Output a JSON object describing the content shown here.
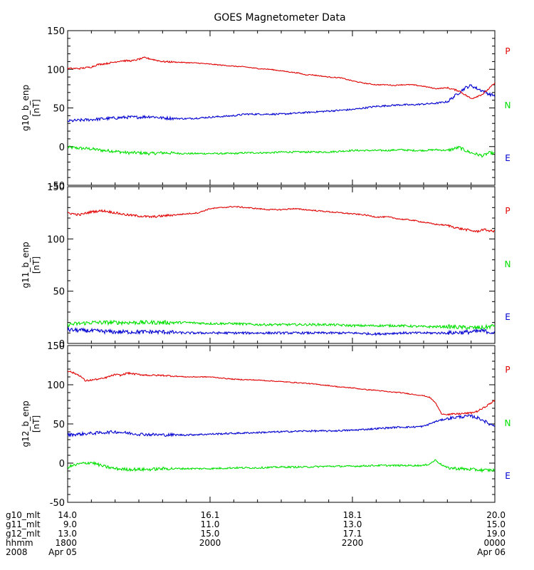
{
  "title": "GOES Magnetometer Data",
  "colors": {
    "P": "#e00000",
    "N": "#00e000",
    "E": "#0000d0",
    "axis": "#000000"
  },
  "chart_data": [
    {
      "type": "line",
      "ylabel": "g10_b_enp",
      "unit": "[nT]",
      "ylim": [
        -50,
        150
      ],
      "yticks": [
        -50,
        0,
        50,
        100,
        150
      ],
      "xlim": [
        0,
        360
      ],
      "legend": [
        "P",
        "N",
        "E"
      ],
      "series": [
        {
          "name": "P",
          "color": "#e00000",
          "x": [
            0,
            10,
            20,
            25,
            35,
            45,
            55,
            65,
            80,
            95,
            110,
            125,
            140,
            150,
            160,
            170,
            180,
            190,
            195,
            200,
            205,
            210,
            215,
            220,
            230,
            240,
            250,
            260,
            270,
            275,
            280,
            290,
            300,
            310,
            320,
            330,
            340,
            345,
            350,
            355,
            360
          ],
          "y": [
            101,
            101,
            103,
            106,
            108,
            111,
            111,
            115,
            110,
            109,
            108,
            106,
            104,
            103,
            101,
            100,
            98,
            96,
            95,
            93,
            93,
            92,
            91,
            90,
            89,
            85,
            82,
            80,
            80,
            79,
            80,
            80,
            78,
            75,
            76,
            72,
            62,
            65,
            68,
            75,
            82
          ]
        },
        {
          "name": "N",
          "color": "#00e000",
          "x": [
            0,
            10,
            20,
            30,
            40,
            50,
            60,
            70,
            80,
            100,
            120,
            140,
            150,
            160,
            170,
            180,
            190,
            200,
            210,
            220,
            230,
            240,
            250,
            260,
            270,
            280,
            290,
            300,
            310,
            320,
            330,
            335,
            340,
            345,
            350,
            355,
            360
          ],
          "y": [
            -1,
            -2,
            -3,
            -5,
            -6,
            -8,
            -8,
            -9,
            -8,
            -9,
            -9,
            -9,
            -8,
            -8,
            -8,
            -7,
            -7,
            -7,
            -7,
            -7,
            -6,
            -5,
            -5,
            -5,
            -5,
            -4,
            -5,
            -5,
            -4,
            -5,
            -1,
            -5,
            -8,
            -10,
            -12,
            -8,
            -9
          ]
        },
        {
          "name": "E",
          "color": "#0000d0",
          "x": [
            0,
            10,
            20,
            30,
            40,
            50,
            60,
            70,
            80,
            100,
            120,
            140,
            150,
            160,
            170,
            180,
            190,
            200,
            210,
            220,
            230,
            240,
            250,
            260,
            270,
            280,
            290,
            300,
            310,
            320,
            330,
            335,
            340,
            345,
            350,
            355,
            360
          ],
          "y": [
            33,
            34,
            35,
            36,
            37,
            38,
            38,
            39,
            37,
            36,
            38,
            40,
            42,
            42,
            42,
            42,
            43,
            44,
            45,
            46,
            47,
            48,
            50,
            52,
            53,
            54,
            54,
            55,
            56,
            58,
            70,
            76,
            79,
            75,
            72,
            68,
            66
          ]
        }
      ]
    },
    {
      "type": "line",
      "ylabel": "g11_b_enp",
      "unit": "[nT]",
      "ylim": [
        0,
        150
      ],
      "yticks": [
        0,
        50,
        100,
        150
      ],
      "xlim": [
        0,
        360
      ],
      "legend": [
        "P",
        "N",
        "E"
      ],
      "series": [
        {
          "name": "P",
          "color": "#e00000",
          "x": [
            0,
            10,
            20,
            30,
            40,
            50,
            60,
            70,
            80,
            90,
            100,
            110,
            120,
            130,
            140,
            150,
            160,
            170,
            180,
            190,
            200,
            210,
            220,
            230,
            240,
            250,
            260,
            270,
            280,
            290,
            300,
            310,
            320,
            330,
            340,
            345,
            350,
            355,
            360
          ],
          "y": [
            125,
            123,
            126,
            127,
            125,
            123,
            122,
            121,
            122,
            123,
            124,
            125,
            129,
            130,
            131,
            130,
            129,
            128,
            128,
            129,
            128,
            127,
            126,
            125,
            124,
            123,
            121,
            121,
            119,
            118,
            116,
            114,
            113,
            110,
            108,
            107,
            109,
            108,
            107
          ]
        },
        {
          "name": "N",
          "color": "#00e000",
          "x": [
            0,
            20,
            40,
            60,
            80,
            100,
            120,
            140,
            160,
            180,
            200,
            220,
            240,
            260,
            280,
            300,
            320,
            340,
            350,
            355,
            360
          ],
          "y": [
            18,
            20,
            20,
            20,
            20,
            20,
            19,
            19,
            18,
            18,
            18,
            18,
            17,
            17,
            17,
            16,
            16,
            15,
            15,
            16,
            17
          ]
        },
        {
          "name": "E",
          "color": "#0000d0",
          "x": [
            0,
            20,
            40,
            60,
            80,
            100,
            120,
            140,
            160,
            180,
            200,
            220,
            240,
            260,
            280,
            300,
            320,
            340,
            350,
            355,
            360
          ],
          "y": [
            13,
            12,
            11,
            11,
            11,
            10,
            10,
            10,
            10,
            10,
            10,
            10,
            10,
            9,
            10,
            10,
            10,
            11,
            12,
            11,
            10
          ]
        }
      ]
    },
    {
      "type": "line",
      "ylabel": "g12_b_enp",
      "unit": "[nT]",
      "ylim": [
        -50,
        150
      ],
      "yticks": [
        -50,
        0,
        50,
        100,
        150
      ],
      "xlim": [
        0,
        360
      ],
      "legend": [
        "P",
        "N",
        "E"
      ],
      "series": [
        {
          "name": "P",
          "color": "#e00000",
          "x": [
            0,
            10,
            15,
            20,
            30,
            40,
            45,
            50,
            60,
            70,
            80,
            100,
            120,
            140,
            160,
            180,
            200,
            220,
            230,
            240,
            250,
            260,
            270,
            280,
            290,
            300,
            305,
            310,
            315,
            320,
            330,
            340,
            345,
            350,
            355,
            360
          ],
          "y": [
            118,
            112,
            105,
            106,
            108,
            113,
            112,
            115,
            113,
            112,
            112,
            110,
            110,
            107,
            106,
            104,
            102,
            99,
            97,
            96,
            94,
            93,
            91,
            90,
            88,
            86,
            84,
            77,
            63,
            62,
            63,
            64,
            66,
            70,
            75,
            80
          ]
        },
        {
          "name": "N",
          "color": "#00e000",
          "x": [
            0,
            10,
            20,
            30,
            40,
            50,
            60,
            70,
            80,
            100,
            120,
            140,
            160,
            180,
            200,
            220,
            240,
            260,
            280,
            290,
            300,
            305,
            310,
            315,
            320,
            330,
            340,
            350,
            360
          ],
          "y": [
            -5,
            -1,
            1,
            -4,
            -7,
            -8,
            -8,
            -8,
            -7,
            -7,
            -7,
            -6,
            -6,
            -5,
            -5,
            -4,
            -4,
            -3,
            -3,
            -3,
            -3,
            -1,
            4,
            -2,
            -6,
            -7,
            -8,
            -9,
            -9
          ]
        },
        {
          "name": "E",
          "color": "#0000d0",
          "x": [
            0,
            20,
            40,
            60,
            80,
            100,
            120,
            140,
            160,
            180,
            200,
            220,
            240,
            260,
            280,
            290,
            300,
            310,
            320,
            330,
            340,
            345,
            350,
            355,
            360
          ],
          "y": [
            36,
            38,
            40,
            37,
            36,
            36,
            37,
            38,
            39,
            40,
            41,
            41,
            42,
            44,
            46,
            46,
            47,
            53,
            57,
            59,
            60,
            58,
            55,
            50,
            48
          ]
        }
      ]
    }
  ],
  "xaxis": {
    "rows": [
      {
        "label": "g10_mlt",
        "values": [
          "14.0",
          "16.1",
          "18.1",
          "20.0"
        ]
      },
      {
        "label": "g11_mlt",
        "values": [
          "9.0",
          "11.0",
          "13.0",
          "15.0"
        ]
      },
      {
        "label": "g12_mlt",
        "values": [
          "13.0",
          "15.0",
          "17.1",
          "19.0"
        ]
      },
      {
        "label": "hhmm",
        "values": [
          "1800",
          "2000",
          "2200",
          "0000"
        ]
      }
    ],
    "year": "2008",
    "date_start": "Apr 05",
    "date_end": "Apr 06"
  }
}
